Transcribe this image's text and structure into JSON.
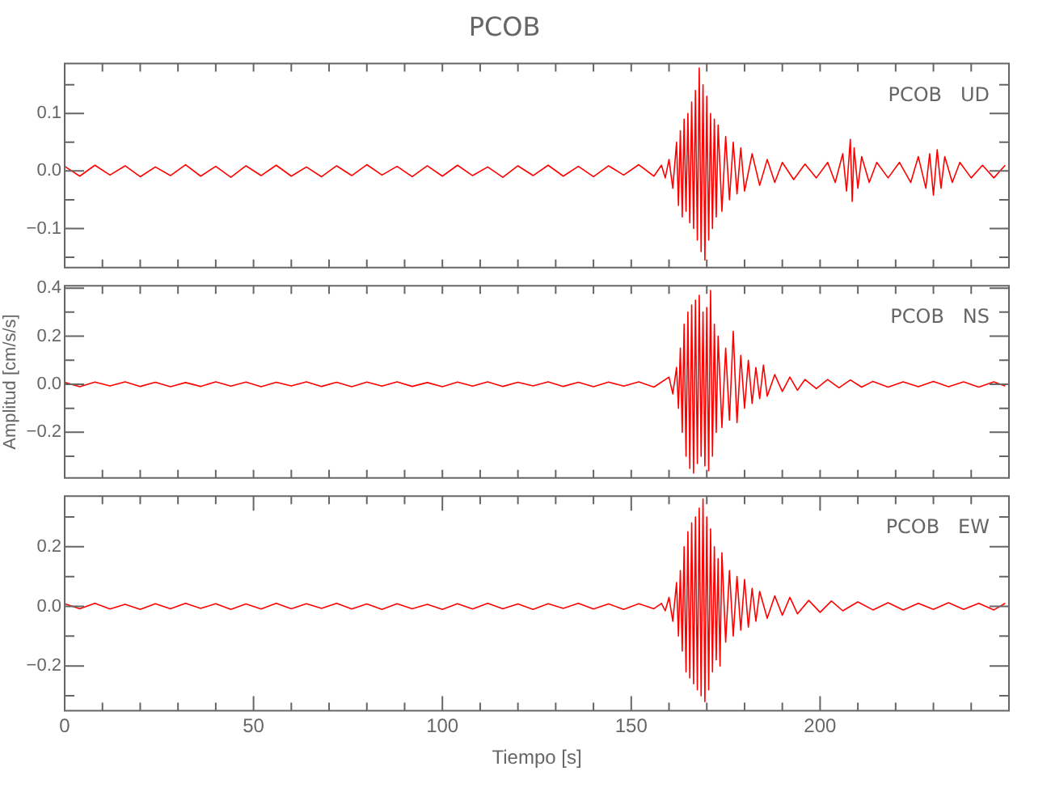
{
  "chart_data": [
    {
      "type": "line",
      "title": "PCOB",
      "annotations": [
        "PCOB   UD"
      ],
      "xlim": [
        0,
        250
      ],
      "ylim": [
        -0.168,
        0.187
      ],
      "tick_labels": "y",
      "xticks": [
        {
          "value": 0,
          "label": null
        },
        {
          "value": 10,
          "label": null
        },
        {
          "value": 20,
          "label": null
        },
        {
          "value": 30,
          "label": null
        },
        {
          "value": 40,
          "label": null
        },
        {
          "value": 50,
          "label": null
        },
        {
          "value": 60,
          "label": null
        },
        {
          "value": 70,
          "label": null
        },
        {
          "value": 80,
          "label": null
        },
        {
          "value": 90,
          "label": null
        },
        {
          "value": 100,
          "label": null
        },
        {
          "value": 110,
          "label": null
        },
        {
          "value": 120,
          "label": null
        },
        {
          "value": 130,
          "label": null
        },
        {
          "value": 140,
          "label": null
        },
        {
          "value": 150,
          "label": null
        },
        {
          "value": 160,
          "label": null
        },
        {
          "value": 170,
          "label": null
        },
        {
          "value": 180,
          "label": null
        },
        {
          "value": 190,
          "label": null
        },
        {
          "value": 200,
          "label": null
        },
        {
          "value": 210,
          "label": null
        },
        {
          "value": 220,
          "label": null
        },
        {
          "value": 230,
          "label": null
        },
        {
          "value": 240,
          "label": null
        }
      ],
      "yticks": [
        {
          "value": -0.15,
          "label": null
        },
        {
          "value": -0.1,
          "label": "−0.1"
        },
        {
          "value": -0.05,
          "label": null
        },
        {
          "value": 0,
          "label": "0.0"
        },
        {
          "value": 0.05,
          "label": null
        },
        {
          "value": 0.1,
          "label": "0.1"
        },
        {
          "value": 0.15,
          "label": null
        }
      ],
      "x": [
        0,
        4,
        8,
        12,
        16,
        20,
        24,
        28,
        32,
        36,
        40,
        44,
        48,
        52,
        56,
        60,
        64,
        68,
        72,
        76,
        80,
        84,
        88,
        92,
        96,
        100,
        104,
        108,
        112,
        116,
        120,
        124,
        128,
        132,
        136,
        140,
        144,
        148,
        152,
        156,
        158,
        159,
        160,
        161,
        162,
        162.5,
        163,
        163.5,
        164,
        164.5,
        165,
        165.5,
        166,
        166.5,
        167,
        167.5,
        168,
        168.5,
        169,
        169.5,
        170,
        170.5,
        171,
        171.5,
        172,
        172.5,
        173,
        174,
        175,
        176,
        177,
        178,
        179,
        180,
        182,
        184,
        186,
        188,
        190,
        193,
        196,
        199,
        202,
        204,
        206,
        207,
        208,
        208.5,
        209,
        210,
        211,
        213,
        215,
        218,
        221,
        224,
        226,
        228,
        229,
        230,
        231,
        232,
        233,
        235,
        237,
        240,
        243,
        246,
        249
      ],
      "series": [
        {
          "color": "#ff0000",
          "values": [
            0.008,
            -0.009,
            0.01,
            -0.007,
            0.009,
            -0.01,
            0.007,
            -0.008,
            0.011,
            -0.009,
            0.008,
            -0.011,
            0.009,
            -0.008,
            0.01,
            -0.009,
            0.007,
            -0.01,
            0.009,
            -0.008,
            0.011,
            -0.007,
            0.008,
            -0.01,
            0.009,
            -0.009,
            0.01,
            -0.008,
            0.007,
            -0.011,
            0.009,
            -0.008,
            0.01,
            -0.009,
            0.008,
            -0.01,
            0.009,
            -0.007,
            0.011,
            -0.009,
            0.01,
            -0.012,
            0.02,
            -0.03,
            0.05,
            -0.06,
            0.07,
            -0.08,
            0.09,
            -0.07,
            0.1,
            -0.09,
            0.12,
            -0.1,
            0.14,
            -0.12,
            0.179,
            -0.14,
            0.15,
            -0.155,
            0.13,
            -0.12,
            0.1,
            -0.1,
            0.09,
            -0.08,
            0.08,
            -0.07,
            0.06,
            -0.05,
            0.05,
            -0.04,
            0.04,
            -0.035,
            0.03,
            -0.025,
            0.02,
            -0.02,
            0.015,
            -0.015,
            0.012,
            -0.012,
            0.015,
            -0.02,
            0.03,
            -0.035,
            0.055,
            -0.053,
            0.04,
            -0.03,
            0.025,
            -0.02,
            0.015,
            -0.012,
            0.015,
            -0.02,
            0.025,
            -0.03,
            0.03,
            -0.042,
            0.037,
            -0.03,
            0.025,
            -0.02,
            0.015,
            -0.012,
            0.01,
            -0.012,
            0.01
          ]
        }
      ]
    },
    {
      "type": "line",
      "ylabel": "Amplitud [cm/s/s]",
      "annotations": [
        "PCOB   NS"
      ],
      "xlim": [
        0,
        250
      ],
      "ylim": [
        -0.39,
        0.41
      ],
      "tick_labels": "y",
      "xticks": [
        {
          "value": 0,
          "label": null
        },
        {
          "value": 10,
          "label": null
        },
        {
          "value": 20,
          "label": null
        },
        {
          "value": 30,
          "label": null
        },
        {
          "value": 40,
          "label": null
        },
        {
          "value": 50,
          "label": null
        },
        {
          "value": 60,
          "label": null
        },
        {
          "value": 70,
          "label": null
        },
        {
          "value": 80,
          "label": null
        },
        {
          "value": 90,
          "label": null
        },
        {
          "value": 100,
          "label": null
        },
        {
          "value": 110,
          "label": null
        },
        {
          "value": 120,
          "label": null
        },
        {
          "value": 130,
          "label": null
        },
        {
          "value": 140,
          "label": null
        },
        {
          "value": 150,
          "label": null
        },
        {
          "value": 160,
          "label": null
        },
        {
          "value": 170,
          "label": null
        },
        {
          "value": 180,
          "label": null
        },
        {
          "value": 190,
          "label": null
        },
        {
          "value": 200,
          "label": null
        },
        {
          "value": 210,
          "label": null
        },
        {
          "value": 220,
          "label": null
        },
        {
          "value": 230,
          "label": null
        },
        {
          "value": 240,
          "label": null
        }
      ],
      "yticks": [
        {
          "value": -0.3,
          "label": null
        },
        {
          "value": -0.2,
          "label": "−0.2"
        },
        {
          "value": -0.1,
          "label": null
        },
        {
          "value": 0,
          "label": "0.0"
        },
        {
          "value": 0.1,
          "label": null
        },
        {
          "value": 0.2,
          "label": "0.2"
        },
        {
          "value": 0.3,
          "label": null
        },
        {
          "value": 0.4,
          "label": "0.4"
        }
      ],
      "x": [
        0,
        4,
        8,
        12,
        16,
        20,
        24,
        28,
        32,
        36,
        40,
        44,
        48,
        52,
        56,
        60,
        64,
        68,
        72,
        76,
        80,
        84,
        88,
        92,
        96,
        100,
        104,
        108,
        112,
        116,
        120,
        124,
        128,
        132,
        136,
        140,
        144,
        148,
        152,
        156,
        160,
        161,
        162,
        162.5,
        163,
        163.5,
        164,
        164.5,
        165,
        165.5,
        166,
        166.5,
        167,
        167.5,
        168,
        168.5,
        169,
        169.5,
        170,
        170.5,
        171,
        171.5,
        172,
        172.5,
        173,
        174,
        175,
        176,
        177,
        178,
        179,
        180,
        181,
        182,
        183,
        184,
        185,
        186,
        188,
        190,
        192,
        194,
        196,
        199,
        202,
        205,
        208,
        211,
        214,
        218,
        222,
        226,
        230,
        234,
        238,
        242,
        246,
        249
      ],
      "series": [
        {
          "color": "#ff0000",
          "values": [
            0.008,
            -0.01,
            0.009,
            -0.007,
            0.01,
            -0.009,
            0.008,
            -0.01,
            0.007,
            -0.009,
            0.01,
            -0.008,
            0.009,
            -0.01,
            0.008,
            -0.007,
            0.01,
            -0.009,
            0.008,
            -0.01,
            0.009,
            -0.008,
            0.01,
            -0.009,
            0.007,
            -0.01,
            0.009,
            -0.008,
            0.01,
            -0.009,
            0.008,
            -0.007,
            0.01,
            -0.009,
            0.008,
            -0.01,
            0.009,
            -0.008,
            0.01,
            -0.012,
            0.03,
            -0.04,
            0.07,
            -0.1,
            0.15,
            -0.2,
            0.25,
            -0.3,
            0.3,
            -0.35,
            0.33,
            -0.37,
            0.35,
            -0.33,
            0.37,
            -0.3,
            0.3,
            -0.34,
            0.32,
            -0.36,
            0.39,
            -0.3,
            0.25,
            -0.2,
            0.2,
            -0.18,
            0.15,
            -0.15,
            0.22,
            -0.16,
            0.12,
            -0.1,
            0.1,
            -0.08,
            0.07,
            -0.06,
            0.08,
            -0.05,
            0.04,
            -0.03,
            0.03,
            -0.025,
            0.02,
            -0.018,
            0.02,
            -0.015,
            0.018,
            -0.012,
            0.012,
            -0.012,
            0.01,
            -0.01,
            0.012,
            -0.01,
            0.01,
            -0.012,
            0.01,
            -0.008
          ]
        }
      ]
    },
    {
      "type": "line",
      "xlabel": "Tiempo [s]",
      "annotations": [
        "PCOB   EW"
      ],
      "xlim": [
        0,
        250
      ],
      "ylim": [
        -0.35,
        0.37
      ],
      "xticks": [
        0,
        {
          "value": 10,
          "label": null
        },
        {
          "value": 20,
          "label": null
        },
        {
          "value": 30,
          "label": null
        },
        {
          "value": 40,
          "label": null
        },
        50,
        {
          "value": 60,
          "label": null
        },
        {
          "value": 70,
          "label": null
        },
        {
          "value": 80,
          "label": null
        },
        {
          "value": 90,
          "label": null
        },
        100,
        {
          "value": 110,
          "label": null
        },
        {
          "value": 120,
          "label": null
        },
        {
          "value": 130,
          "label": null
        },
        {
          "value": 140,
          "label": null
        },
        150,
        {
          "value": 160,
          "label": null
        },
        {
          "value": 170,
          "label": null
        },
        {
          "value": 180,
          "label": null
        },
        {
          "value": 190,
          "label": null
        },
        200,
        {
          "value": 210,
          "label": null
        },
        {
          "value": 220,
          "label": null
        },
        {
          "value": 230,
          "label": null
        },
        {
          "value": 240,
          "label": null
        }
      ],
      "yticks": [
        {
          "value": -0.3,
          "label": null
        },
        {
          "value": -0.2,
          "label": "−0.2"
        },
        {
          "value": -0.1,
          "label": null
        },
        {
          "value": 0,
          "label": "0.0"
        },
        {
          "value": 0.1,
          "label": null
        },
        {
          "value": 0.2,
          "label": "0.2"
        },
        {
          "value": 0.3,
          "label": null
        }
      ],
      "x": [
        0,
        4,
        8,
        12,
        16,
        20,
        24,
        28,
        32,
        36,
        40,
        44,
        48,
        52,
        56,
        60,
        64,
        68,
        72,
        76,
        80,
        84,
        88,
        92,
        96,
        100,
        104,
        108,
        112,
        116,
        120,
        124,
        128,
        132,
        136,
        140,
        144,
        148,
        152,
        156,
        158,
        159,
        160,
        161,
        162,
        162.5,
        163,
        163.5,
        164,
        164.5,
        165,
        165.5,
        166,
        166.5,
        167,
        167.5,
        168,
        168.5,
        169,
        169.5,
        170,
        170.5,
        171,
        171.5,
        172,
        172.5,
        173,
        173.5,
        174,
        175,
        176,
        177,
        178,
        179,
        180,
        181,
        182,
        183,
        184,
        186,
        188,
        190,
        192,
        194,
        197,
        200,
        203,
        206,
        210,
        214,
        218,
        222,
        226,
        230,
        234,
        238,
        242,
        246,
        249
      ],
      "series": [
        {
          "color": "#ff0000",
          "values": [
            0.009,
            -0.008,
            0.01,
            -0.009,
            0.007,
            -0.01,
            0.009,
            -0.008,
            0.01,
            -0.007,
            0.009,
            -0.01,
            0.008,
            -0.009,
            0.01,
            -0.008,
            0.009,
            -0.007,
            0.01,
            -0.009,
            0.008,
            -0.01,
            0.009,
            -0.008,
            0.007,
            -0.01,
            0.009,
            -0.009,
            0.01,
            -0.008,
            0.008,
            -0.01,
            0.009,
            -0.007,
            0.01,
            -0.009,
            0.008,
            -0.01,
            0.009,
            -0.008,
            0.01,
            -0.015,
            0.03,
            -0.05,
            0.08,
            -0.1,
            0.12,
            -0.15,
            0.2,
            -0.22,
            0.25,
            -0.24,
            0.28,
            -0.26,
            0.3,
            -0.28,
            0.33,
            -0.3,
            0.36,
            -0.32,
            0.3,
            -0.28,
            0.26,
            -0.22,
            0.2,
            -0.18,
            0.16,
            -0.2,
            0.18,
            -0.12,
            0.12,
            -0.1,
            0.1,
            -0.08,
            0.09,
            -0.07,
            0.06,
            -0.05,
            0.05,
            -0.04,
            0.035,
            -0.03,
            0.03,
            -0.025,
            0.02,
            -0.02,
            0.018,
            -0.015,
            0.015,
            -0.012,
            0.012,
            -0.012,
            0.01,
            -0.01,
            0.012,
            -0.01,
            0.01,
            -0.012,
            0.01
          ]
        }
      ]
    }
  ]
}
